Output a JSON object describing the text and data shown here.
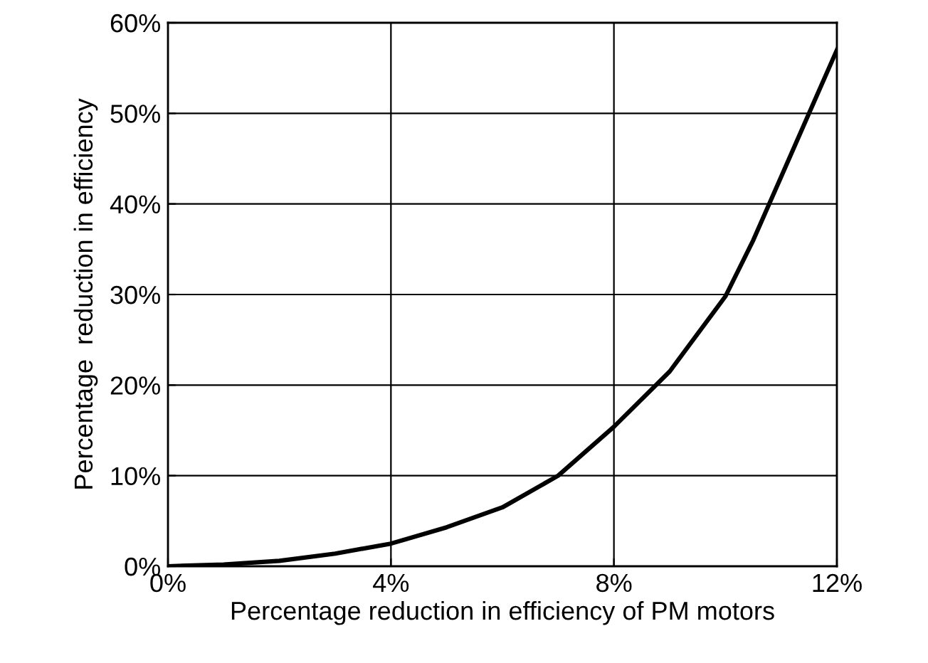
{
  "chart_data": {
    "type": "line",
    "xlabel": "Percentage reduction in efficiency of PM motors",
    "ylabel": "Percentage  reduction in efficiency",
    "x": [
      0,
      1,
      2,
      3,
      4,
      5,
      6,
      7,
      8,
      9,
      10,
      10.5,
      11,
      11.5,
      12
    ],
    "series": [
      {
        "color": "#000000",
        "values": [
          0,
          0.2,
          0.6,
          1.4,
          2.5,
          4.3,
          6.5,
          10,
          15.4,
          21.5,
          29.8,
          36,
          43,
          50,
          57
        ]
      }
    ],
    "xlim": [
      0,
      12
    ],
    "xticks": [
      {
        "value": 0,
        "label": "0%"
      },
      {
        "value": 4,
        "label": "4%"
      },
      {
        "value": 8,
        "label": "8%"
      },
      {
        "value": 12,
        "label": "12%"
      }
    ],
    "ylim": [
      0,
      60
    ],
    "yticks": [
      {
        "value": 0,
        "label": "0%"
      },
      {
        "value": 10,
        "label": "10%"
      },
      {
        "value": 20,
        "label": "20%"
      },
      {
        "value": 30,
        "label": "30%"
      },
      {
        "value": 40,
        "label": "40%"
      },
      {
        "value": 50,
        "label": "50%"
      },
      {
        "value": 60,
        "label": "60%"
      }
    ],
    "grid": true,
    "marker": "none",
    "line_style": "solid"
  }
}
